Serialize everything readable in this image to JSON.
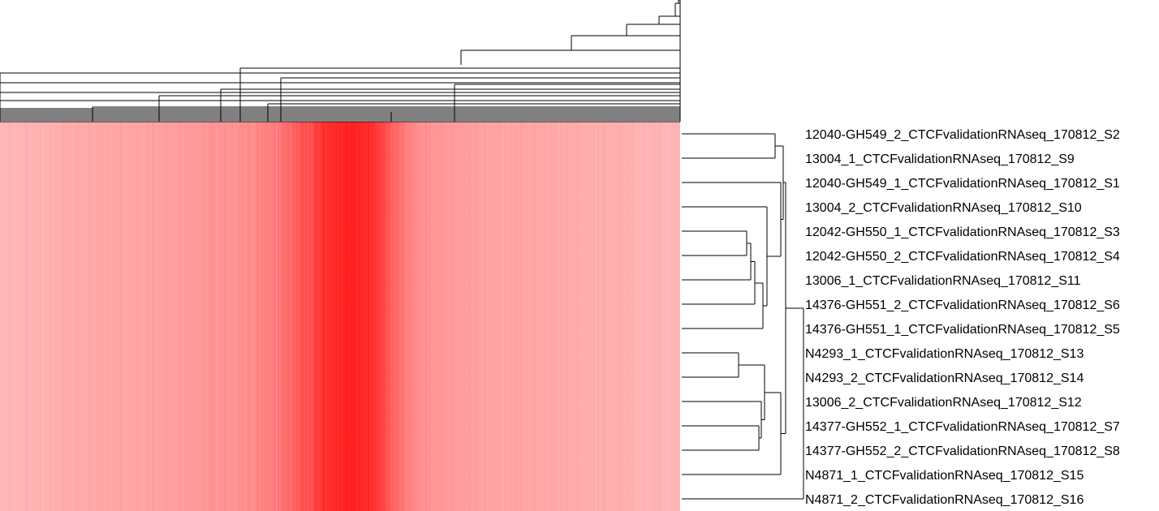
{
  "chart_data": {
    "type": "heatmap",
    "title": "",
    "xlabel": "",
    "ylabel": "",
    "color_scale": {
      "low": "#ffc4c4",
      "mid": "#ff8c8c",
      "high": "#ff1f1f"
    },
    "rows": [
      "12040-GH549_2_CTCFvalidationRNAseq_170812_S2",
      "13004_1_CTCFvalidationRNAseq_170812_S9",
      "12040-GH549_1_CTCFvalidationRNAseq_170812_S1",
      "13004_2_CTCFvalidationRNAseq_170812_S10",
      "12042-GH550_1_CTCFvalidationRNAseq_170812_S3",
      "12042-GH550_2_CTCFvalidationRNAseq_170812_S4",
      "13006_1_CTCFvalidationRNAseq_170812_S11",
      "14376-GH551_2_CTCFvalidationRNAseq_170812_S6",
      "14376-GH551_1_CTCFvalidationRNAseq_170812_S5",
      "N4293_1_CTCFvalidationRNAseq_170812_S13",
      "N4293_2_CTCFvalidationRNAseq_170812_S14",
      "13006_2_CTCFvalidationRNAseq_170812_S12",
      "14377-GH552_1_CTCFvalidationRNAseq_170812_S7",
      "14377-GH552_2_CTCFvalidationRNAseq_170812_S8",
      "N4871_1_CTCFvalidationRNAseq_170812_S15",
      "N4871_2_CTCFvalidationRNAseq_170812_S16"
    ],
    "column_intensity_profile": [
      0.12,
      0.15,
      0.18,
      0.22,
      0.25,
      0.28,
      0.3,
      0.33,
      0.36,
      0.4,
      0.45,
      0.52,
      0.6,
      0.75,
      0.95,
      1.0,
      0.9,
      0.62,
      0.45,
      0.38,
      0.34,
      0.3,
      0.28,
      0.26,
      0.24,
      0.22,
      0.2,
      0.18,
      0.15,
      0.12
    ]
  }
}
